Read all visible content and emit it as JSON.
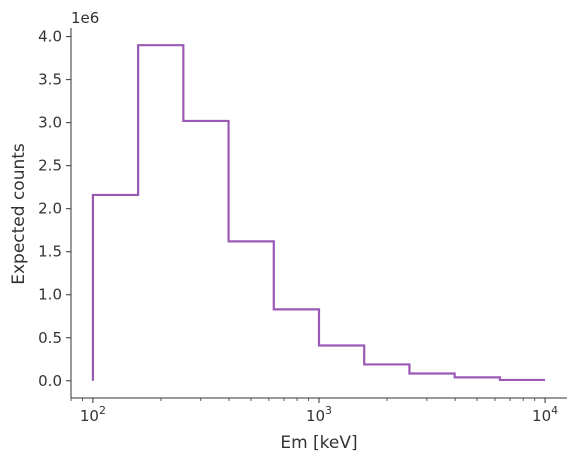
{
  "chart_data": {
    "type": "histogram",
    "xscale": "log",
    "xlabel": "Em [keV]",
    "ylabel": "Expected counts",
    "y_offset_label": "1e6",
    "xlim": [
      80,
      12500
    ],
    "ylim": [
      -200000,
      4100000
    ],
    "x_ticks": [
      {
        "value": 100,
        "base": "10",
        "exp": "2"
      },
      {
        "value": 1000,
        "base": "10",
        "exp": "3"
      },
      {
        "value": 10000,
        "base": "10",
        "exp": "4"
      }
    ],
    "y_ticks": [
      {
        "value": 0,
        "label": "0.0"
      },
      {
        "value": 500000,
        "label": "0.5"
      },
      {
        "value": 1000000,
        "label": "1.0"
      },
      {
        "value": 1500000,
        "label": "1.5"
      },
      {
        "value": 2000000,
        "label": "2.0"
      },
      {
        "value": 2500000,
        "label": "2.5"
      },
      {
        "value": 3000000,
        "label": "3.0"
      },
      {
        "value": 3500000,
        "label": "3.5"
      },
      {
        "value": 4000000,
        "label": "4.0"
      }
    ],
    "bin_edges": [
      100,
      158.5,
      251.2,
      398.1,
      631.0,
      1000,
      1584.9,
      2511.9,
      3981.1,
      6309.6,
      10000
    ],
    "values": [
      2160000,
      3900000,
      3020000,
      1620000,
      830000,
      410000,
      190000,
      85000,
      40000,
      10000
    ],
    "line_color": "#9b59b6",
    "grid": false
  }
}
